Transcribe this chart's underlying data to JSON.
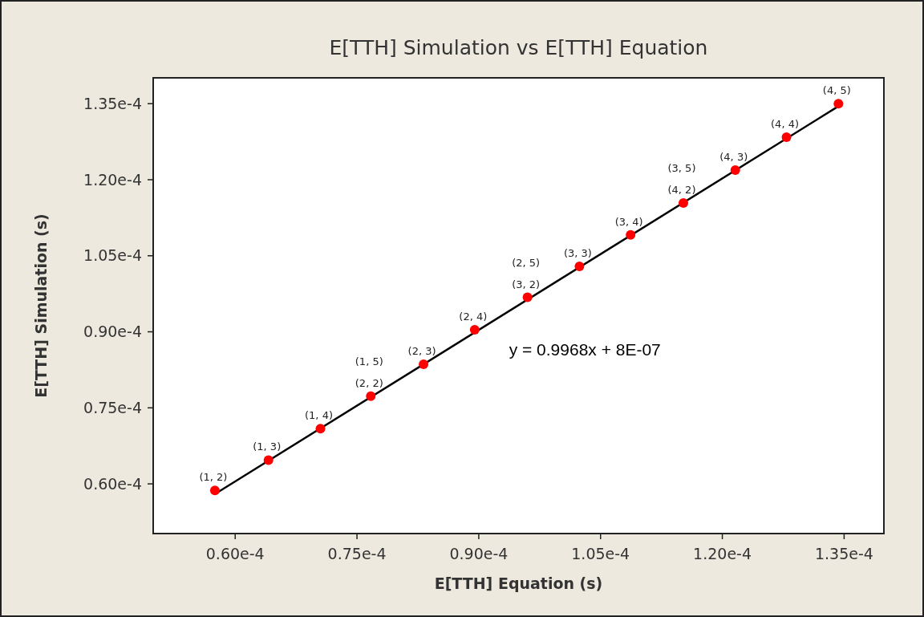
{
  "chart_data": {
    "type": "scatter",
    "title": "E[TTH] Simulation vs E[TTH] Equation",
    "xlabel": "E[TTH] Equation (s)",
    "ylabel": "E[TTH] Simulation (s)",
    "xlim": [
      4.99e-05,
      0.0001399
    ],
    "ylim": [
      5.02e-05,
      0.0001401
    ],
    "xticks": [
      {
        "value": 6e-05,
        "label": "0.60e-4"
      },
      {
        "value": 7.5e-05,
        "label": "0.75e-4"
      },
      {
        "value": 9e-05,
        "label": "0.90e-4"
      },
      {
        "value": 0.000105,
        "label": "1.05e-4"
      },
      {
        "value": 0.00012,
        "label": "1.20e-4"
      },
      {
        "value": 0.000135,
        "label": "1.35e-4"
      }
    ],
    "yticks": [
      {
        "value": 6e-05,
        "label": "0.60e-4"
      },
      {
        "value": 7.5e-05,
        "label": "0.75e-4"
      },
      {
        "value": 9e-05,
        "label": "0.90e-4"
      },
      {
        "value": 0.000105,
        "label": "1.05e-4"
      },
      {
        "value": 0.00012,
        "label": "1.20e-4"
      },
      {
        "value": 0.000135,
        "label": "1.35e-4"
      }
    ],
    "grid": false,
    "marker": "circle",
    "series": [
      {
        "type": "line",
        "marker": "none",
        "color": "#000000",
        "x": [
          5.75e-05,
          0.0001343
        ],
        "values": [
          5.8e-05,
          0.0001345
        ]
      },
      {
        "color": "#ff0000",
        "x": [
          5.75e-05,
          6.41e-05,
          7.05e-05,
          7.67e-05,
          8.32e-05,
          8.95e-05,
          9.6e-05,
          0.0001024,
          0.0001087,
          0.0001152,
          0.0001216,
          0.0001279,
          0.0001343
        ],
        "values": [
          5.87e-05,
          6.47e-05,
          7.09e-05,
          7.73e-05,
          8.36e-05,
          9.04e-05,
          9.68e-05,
          0.0001029,
          0.0001091,
          0.0001154,
          0.0001219,
          0.0001284,
          0.000135
        ]
      }
    ],
    "annotations": [
      "y = 0.9968x + 8E-07",
      {
        "text": "(1, 2)",
        "x": 5.75e-05,
        "y": 5.87e-05
      },
      {
        "text": "(1, 3)",
        "x": 6.41e-05,
        "y": 6.47e-05
      },
      {
        "text": "(1, 4)",
        "x": 7.05e-05,
        "y": 7.09e-05
      },
      {
        "text": "(2, 2)",
        "x": 7.67e-05,
        "y": 7.73e-05
      },
      {
        "text": "(1, 5)",
        "x": 7.67e-05,
        "y": 7.73e-05
      },
      {
        "text": "(2, 3)",
        "x": 8.32e-05,
        "y": 8.36e-05
      },
      {
        "text": "(2, 4)",
        "x": 8.95e-05,
        "y": 9.04e-05
      },
      {
        "text": "(3, 2)",
        "x": 9.6e-05,
        "y": 9.68e-05
      },
      {
        "text": "(2, 5)",
        "x": 9.6e-05,
        "y": 9.68e-05
      },
      {
        "text": "(3, 3)",
        "x": 0.0001024,
        "y": 0.0001029
      },
      {
        "text": "(3, 4)",
        "x": 0.0001087,
        "y": 0.0001091
      },
      {
        "text": "(4, 2)",
        "x": 0.0001152,
        "y": 0.0001154
      },
      {
        "text": "(3, 5)",
        "x": 0.0001152,
        "y": 0.0001154
      },
      {
        "text": "(4, 3)",
        "x": 0.0001216,
        "y": 0.0001219
      },
      {
        "text": "(4, 4)",
        "x": 0.0001279,
        "y": 0.0001284
      },
      {
        "text": "(4, 5)",
        "x": 0.0001343,
        "y": 0.000135
      }
    ]
  }
}
